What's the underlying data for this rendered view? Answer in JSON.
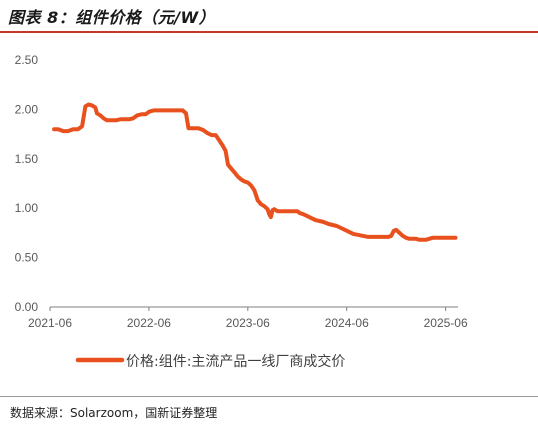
{
  "figure_title": "图表 8：组件价格（元/W）",
  "source_text": "数据来源：Solarzoom，国新证券整理",
  "accent_color": "#c0392b",
  "chart_data": {
    "type": "line",
    "title": "",
    "xlabel": "",
    "ylabel": "",
    "ylim": [
      0,
      2.5
    ],
    "yticks": [
      "0.00",
      "0.50",
      "1.00",
      "1.50",
      "2.00",
      "2.50"
    ],
    "xticks": [
      {
        "label": "2021-06",
        "t": 0
      },
      {
        "label": "2022-06",
        "t": 12
      },
      {
        "label": "2023-06",
        "t": 24
      },
      {
        "label": "2024-06",
        "t": 36
      },
      {
        "label": "2025-06",
        "t": 48
      }
    ],
    "xlim": [
      0,
      49.5
    ],
    "grid": false,
    "legend_position": "bottom",
    "series": [
      {
        "name": "价格:组件:主流产品一线厂商成交价",
        "color": "#e8501e",
        "points": [
          [
            0.5,
            1.8
          ],
          [
            1.0,
            1.8
          ],
          [
            1.6,
            1.78
          ],
          [
            2.2,
            1.78
          ],
          [
            2.8,
            1.8
          ],
          [
            3.4,
            1.8
          ],
          [
            3.9,
            1.83
          ],
          [
            4.3,
            2.03
          ],
          [
            4.7,
            2.05
          ],
          [
            5.1,
            2.04
          ],
          [
            5.5,
            2.02
          ],
          [
            5.7,
            1.96
          ],
          [
            6.1,
            1.94
          ],
          [
            6.5,
            1.91
          ],
          [
            6.9,
            1.89
          ],
          [
            7.4,
            1.89
          ],
          [
            8.0,
            1.89
          ],
          [
            8.5,
            1.9
          ],
          [
            9.0,
            1.9
          ],
          [
            9.6,
            1.9
          ],
          [
            10.1,
            1.91
          ],
          [
            10.6,
            1.94
          ],
          [
            11.1,
            1.95
          ],
          [
            11.6,
            1.95
          ],
          [
            12.1,
            1.98
          ],
          [
            12.6,
            1.99
          ],
          [
            13.4,
            1.99
          ],
          [
            14.2,
            1.99
          ],
          [
            15.0,
            1.99
          ],
          [
            15.6,
            1.99
          ],
          [
            16.1,
            1.99
          ],
          [
            16.5,
            1.96
          ],
          [
            16.8,
            1.81
          ],
          [
            17.4,
            1.81
          ],
          [
            18.0,
            1.81
          ],
          [
            18.6,
            1.79
          ],
          [
            19.1,
            1.76
          ],
          [
            19.6,
            1.74
          ],
          [
            20.1,
            1.74
          ],
          [
            20.5,
            1.69
          ],
          [
            20.9,
            1.64
          ],
          [
            21.3,
            1.58
          ],
          [
            21.6,
            1.44
          ],
          [
            22.0,
            1.4
          ],
          [
            22.4,
            1.36
          ],
          [
            22.8,
            1.32
          ],
          [
            23.2,
            1.29
          ],
          [
            23.6,
            1.27
          ],
          [
            24.0,
            1.26
          ],
          [
            24.4,
            1.23
          ],
          [
            24.8,
            1.18
          ],
          [
            25.2,
            1.08
          ],
          [
            25.6,
            1.04
          ],
          [
            26.0,
            1.02
          ],
          [
            26.4,
            0.99
          ],
          [
            26.6,
            0.94
          ],
          [
            26.8,
            0.91
          ],
          [
            27.0,
            0.98
          ],
          [
            27.2,
            0.99
          ],
          [
            27.6,
            0.97
          ],
          [
            28.2,
            0.97
          ],
          [
            28.8,
            0.97
          ],
          [
            29.4,
            0.97
          ],
          [
            30.0,
            0.97
          ],
          [
            30.3,
            0.95
          ],
          [
            30.7,
            0.94
          ],
          [
            31.2,
            0.92
          ],
          [
            31.7,
            0.9
          ],
          [
            32.2,
            0.88
          ],
          [
            32.7,
            0.87
          ],
          [
            33.2,
            0.86
          ],
          [
            33.8,
            0.84
          ],
          [
            34.3,
            0.83
          ],
          [
            34.8,
            0.82
          ],
          [
            35.3,
            0.8
          ],
          [
            35.8,
            0.78
          ],
          [
            36.3,
            0.76
          ],
          [
            36.8,
            0.74
          ],
          [
            37.4,
            0.73
          ],
          [
            38.0,
            0.72
          ],
          [
            38.6,
            0.71
          ],
          [
            39.2,
            0.71
          ],
          [
            39.8,
            0.71
          ],
          [
            40.4,
            0.71
          ],
          [
            41.0,
            0.71
          ],
          [
            41.4,
            0.72
          ],
          [
            41.7,
            0.77
          ],
          [
            42.0,
            0.78
          ],
          [
            42.4,
            0.75
          ],
          [
            42.8,
            0.72
          ],
          [
            43.2,
            0.7
          ],
          [
            43.6,
            0.69
          ],
          [
            44.0,
            0.69
          ],
          [
            44.4,
            0.69
          ],
          [
            44.8,
            0.68
          ],
          [
            45.2,
            0.68
          ],
          [
            45.6,
            0.68
          ],
          [
            46.0,
            0.69
          ],
          [
            46.4,
            0.7
          ],
          [
            46.8,
            0.7
          ],
          [
            47.2,
            0.7
          ],
          [
            47.6,
            0.7
          ],
          [
            48.0,
            0.7
          ],
          [
            48.4,
            0.7
          ],
          [
            48.8,
            0.7
          ],
          [
            49.2,
            0.7
          ]
        ]
      }
    ]
  }
}
